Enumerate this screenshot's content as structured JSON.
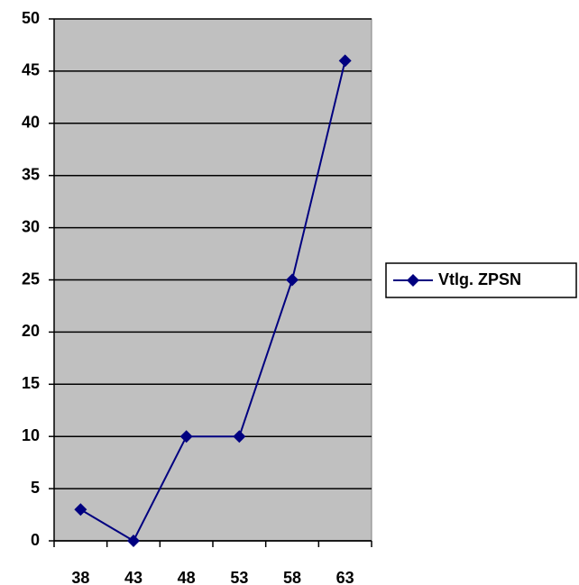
{
  "chart_data": {
    "type": "line",
    "categories": [
      "38",
      "43",
      "48",
      "53",
      "58",
      "63"
    ],
    "series": [
      {
        "name": "Vtlg. ZPSN",
        "color": "#000080",
        "values": [
          3,
          0,
          10,
          10,
          25,
          46
        ]
      }
    ],
    "ylim": [
      0,
      50
    ],
    "yticks": [
      0,
      5,
      10,
      15,
      20,
      25,
      30,
      35,
      40,
      45,
      50
    ],
    "grid": true,
    "plot_background": "#c0c0c0",
    "legend": "right"
  }
}
